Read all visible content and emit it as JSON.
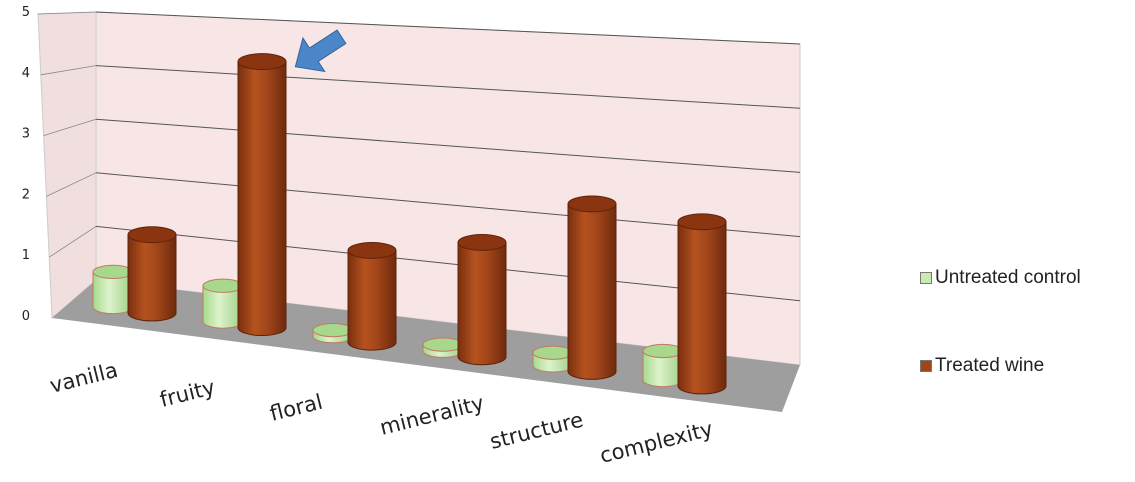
{
  "chart_data": {
    "type": "bar",
    "title": "",
    "xlabel": "",
    "ylabel": "",
    "categories": [
      "vanilla",
      "fruity",
      "floral",
      "minerality",
      "structure",
      "complexity"
    ],
    "series": [
      {
        "name": "Untreated control",
        "values": [
          0.6,
          0.6,
          0.1,
          0.1,
          0.2,
          0.45
        ]
      },
      {
        "name": "Treated wine",
        "values": [
          1.45,
          4.7,
          1.55,
          1.85,
          2.6,
          2.45
        ]
      }
    ],
    "yticks": [
      "0",
      "1",
      "2",
      "3",
      "4",
      "5"
    ],
    "ylim": [
      0,
      5
    ],
    "grid": true,
    "legend_position": "right",
    "annotation": "arrow pointing to fruity treated wine bar",
    "colors": {
      "Untreated control": "#c8ebb0",
      "Treated wine": "#a0451c",
      "back_wall": "#f7e4e4",
      "side_wall": "#f0dede",
      "floor": "#9c9c9c",
      "arrow": "#4a86c8"
    }
  }
}
